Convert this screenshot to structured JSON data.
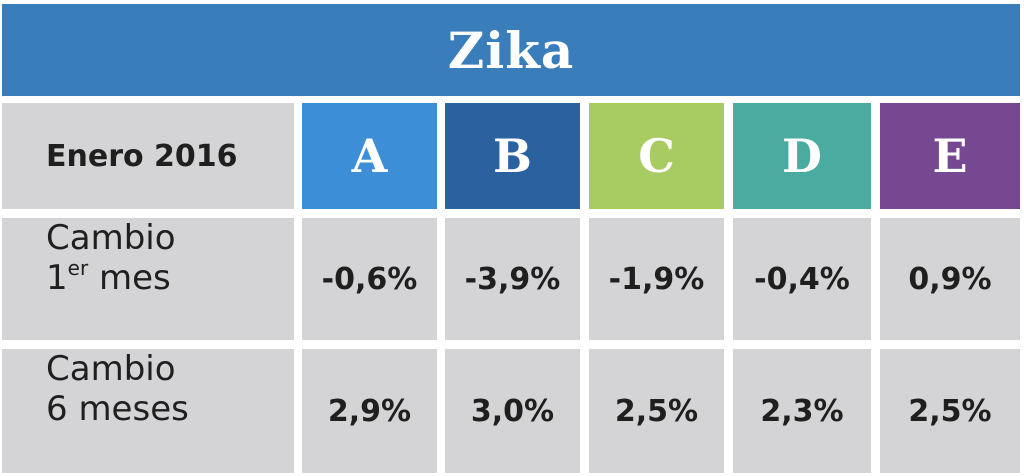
{
  "title": "Zika",
  "header": {
    "period_label": "Enero 2016",
    "groups": [
      {
        "label": "A",
        "color": "#3c8fd6"
      },
      {
        "label": "B",
        "color": "#2a62a0"
      },
      {
        "label": "C",
        "color": "#a9cc62"
      },
      {
        "label": "D",
        "color": "#4aaca0"
      },
      {
        "label": "E",
        "color": "#774892"
      }
    ]
  },
  "rows": [
    {
      "label_line1": "Cambio",
      "label_line2_num": "1",
      "label_line2_sup": "er",
      "label_line2_rest": " mes",
      "values": [
        "-0,6%",
        "-3,9%",
        "-1,9%",
        "-0,4%",
        "0,9%"
      ]
    },
    {
      "label_line1": "Cambio",
      "label_line2": "6 meses",
      "values": [
        "2,9%",
        "3,0%",
        "2,5%",
        "2,3%",
        "2,5%"
      ]
    }
  ],
  "colors": {
    "title_bar": "#3a7dbb",
    "cell_bg": "#d4d4d6"
  }
}
